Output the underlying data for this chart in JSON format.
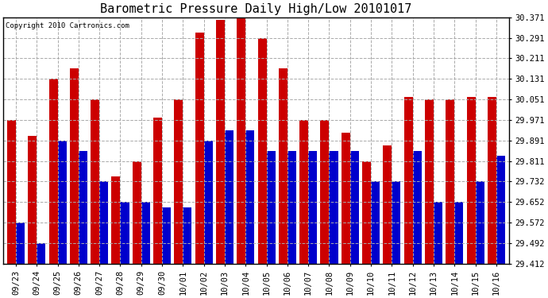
{
  "title": "Barometric Pressure Daily High/Low 20101017",
  "copyright": "Copyright 2010 Cartronics.com",
  "dates": [
    "09/23",
    "09/24",
    "09/25",
    "09/26",
    "09/27",
    "09/28",
    "09/29",
    "09/30",
    "10/01",
    "10/02",
    "10/03",
    "10/04",
    "10/05",
    "10/06",
    "10/07",
    "10/08",
    "10/09",
    "10/10",
    "10/11",
    "10/12",
    "10/13",
    "10/14",
    "10/15",
    "10/16"
  ],
  "highs": [
    29.971,
    29.911,
    30.131,
    30.171,
    30.051,
    29.751,
    29.811,
    29.981,
    30.051,
    30.311,
    30.361,
    30.371,
    30.291,
    30.171,
    29.971,
    29.971,
    29.921,
    29.811,
    29.871,
    30.061,
    30.051,
    30.051,
    30.061,
    30.061
  ],
  "lows": [
    29.572,
    29.492,
    29.891,
    29.852,
    29.732,
    29.652,
    29.652,
    29.632,
    29.632,
    29.892,
    29.931,
    29.931,
    29.852,
    29.852,
    29.852,
    29.852,
    29.852,
    29.732,
    29.732,
    29.852,
    29.652,
    29.652,
    29.732,
    29.832
  ],
  "yticks": [
    29.412,
    29.492,
    29.572,
    29.652,
    29.732,
    29.811,
    29.891,
    29.971,
    30.051,
    30.131,
    30.211,
    30.291,
    30.371
  ],
  "ymin": 29.412,
  "ymax": 30.371,
  "high_color": "#cc0000",
  "low_color": "#0000cc",
  "bg_color": "#ffffff",
  "grid_color": "#aaaaaa",
  "title_fontsize": 11,
  "tick_fontsize": 7.5,
  "copyright_fontsize": 6.5
}
